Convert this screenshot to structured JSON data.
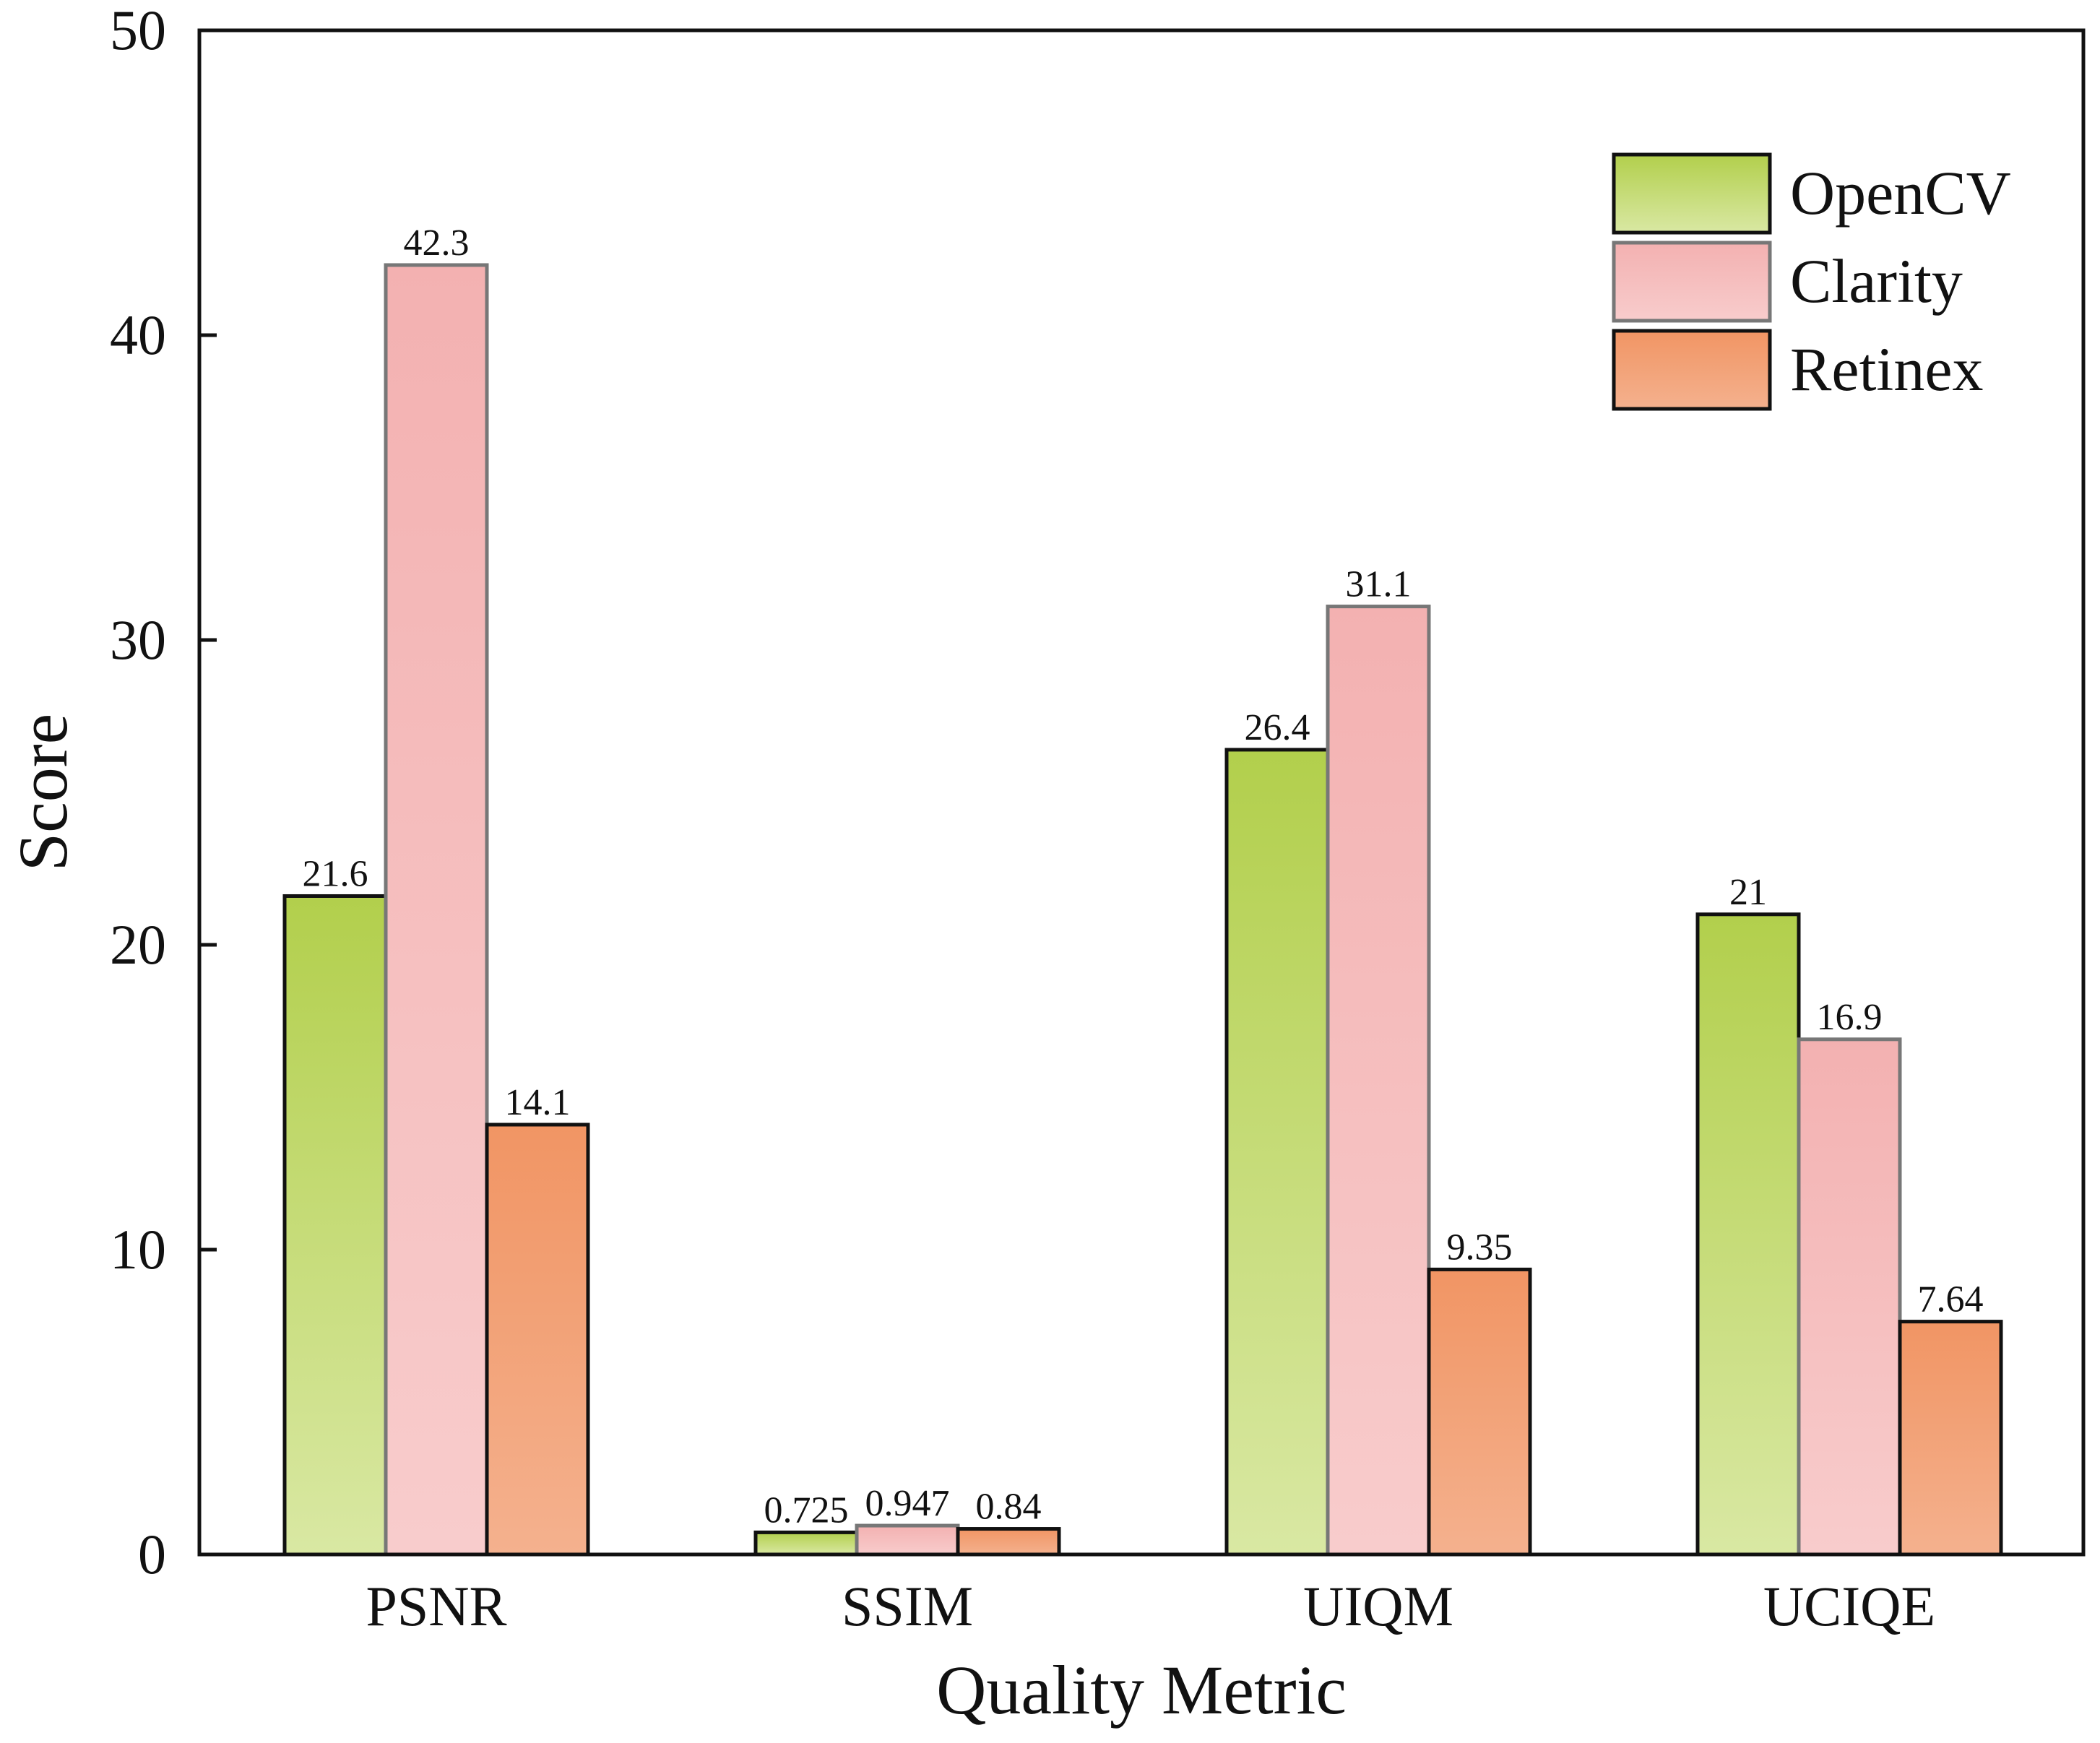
{
  "chart_data": {
    "type": "bar",
    "title": "",
    "xlabel": "Quality Metric",
    "ylabel": "Score",
    "ylim": [
      0,
      50
    ],
    "yticks": [
      "0",
      "10",
      "20",
      "30",
      "40",
      "50"
    ],
    "ytick_values": [
      0,
      10,
      20,
      30,
      40,
      50
    ],
    "categories": [
      "PSNR",
      "SSIM",
      "UIQM",
      "UCIQE"
    ],
    "grid": false,
    "legend_position": "top-right",
    "series": [
      {
        "name": "OpenCV",
        "values": [
          21.6,
          0.725,
          26.4,
          21
        ],
        "labels": [
          "21.6",
          "0.725",
          "26.4",
          "21"
        ],
        "color_top": "#b2cf4c",
        "color_bottom": "#d9e8a3",
        "border": "#111111"
      },
      {
        "name": "Clarity",
        "values": [
          42.3,
          0.947,
          31.1,
          16.9
        ],
        "labels": [
          "42.3",
          "0.947",
          "31.1",
          "16.9"
        ],
        "color_top": "#f3b1b1",
        "color_bottom": "#f8cccc",
        "border": "#777777"
      },
      {
        "name": "Retinex",
        "values": [
          14.1,
          0.84,
          9.35,
          7.64
        ],
        "labels": [
          "14.1",
          "0.84",
          "9.35",
          "7.64"
        ],
        "color_top": "#f19564",
        "color_bottom": "#f4b18e",
        "border": "#111111"
      }
    ]
  }
}
